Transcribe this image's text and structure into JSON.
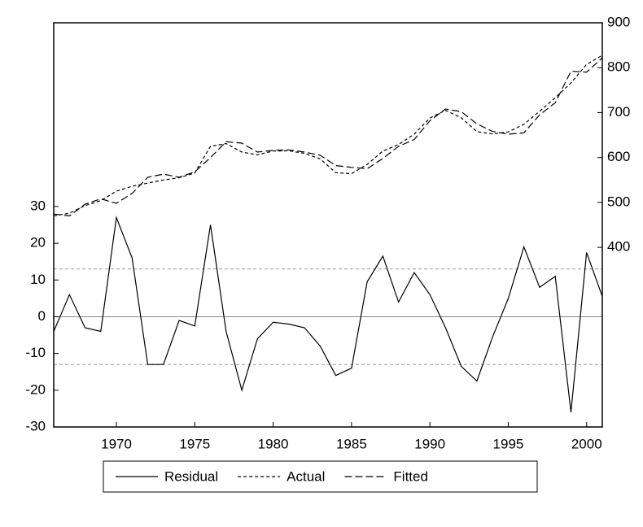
{
  "chart_data": {
    "type": "line",
    "xlim": [
      1966,
      2001
    ],
    "xticks": [
      1970,
      1975,
      1980,
      1985,
      1990,
      1995,
      2000
    ],
    "ylim": [
      -30,
      80
    ],
    "yticks": [
      -30,
      -20,
      -10,
      0,
      10,
      20,
      30
    ],
    "y2lim": [
      0,
      900
    ],
    "y2ticks": [
      400,
      500,
      600,
      700,
      800,
      900
    ],
    "reference_lines": [
      13,
      -13
    ],
    "x": [
      1966,
      1967,
      1968,
      1969,
      1970,
      1971,
      1972,
      1973,
      1974,
      1975,
      1976,
      1977,
      1978,
      1979,
      1980,
      1981,
      1982,
      1983,
      1984,
      1985,
      1986,
      1987,
      1988,
      1989,
      1990,
      1991,
      1992,
      1993,
      1994,
      1995,
      1996,
      1997,
      1998,
      1999,
      2000,
      2001
    ],
    "series": [
      {
        "name": "Residual",
        "color": "#000000",
        "style": "solid",
        "values": [
          -4,
          6,
          -3,
          -4,
          27,
          16,
          -13,
          -13,
          -1,
          -2.5,
          25,
          -4,
          -20,
          -6,
          -1.5,
          -2,
          -3,
          -8,
          -16,
          -14,
          9.5,
          16.5,
          4,
          12,
          6,
          -3,
          -13.5,
          -17.5,
          -5.5,
          5,
          19,
          8,
          11,
          -26,
          17.5,
          5.5
        ]
      },
      {
        "name": "Actual",
        "color": "#000000",
        "style": "dashed",
        "axis": "y2",
        "values": [
          470,
          476,
          493,
          504,
          525,
          536,
          543,
          550,
          555,
          565.5,
          625,
          631,
          612,
          606,
          614.5,
          615,
          609,
          597,
          566,
          564,
          584.5,
          614.5,
          629,
          652,
          688,
          705,
          688.5,
          657.5,
          652.5,
          657,
          674,
          703,
          733,
          766,
          807.5,
          827.5
        ]
      },
      {
        "name": "Fitted",
        "color": "#000000",
        "style": "long-dashed",
        "axis": "y2",
        "values": [
          474,
          470,
          496,
          508,
          498,
          520,
          556,
          563,
          556,
          568,
          600,
          635,
          632,
          612,
          616,
          617,
          612,
          605,
          582,
          578,
          575,
          598,
          625,
          640,
          682,
          708,
          702,
          675,
          658,
          652,
          655,
          695,
          722,
          792,
          790,
          822
        ]
      }
    ],
    "legend": "bottom"
  }
}
